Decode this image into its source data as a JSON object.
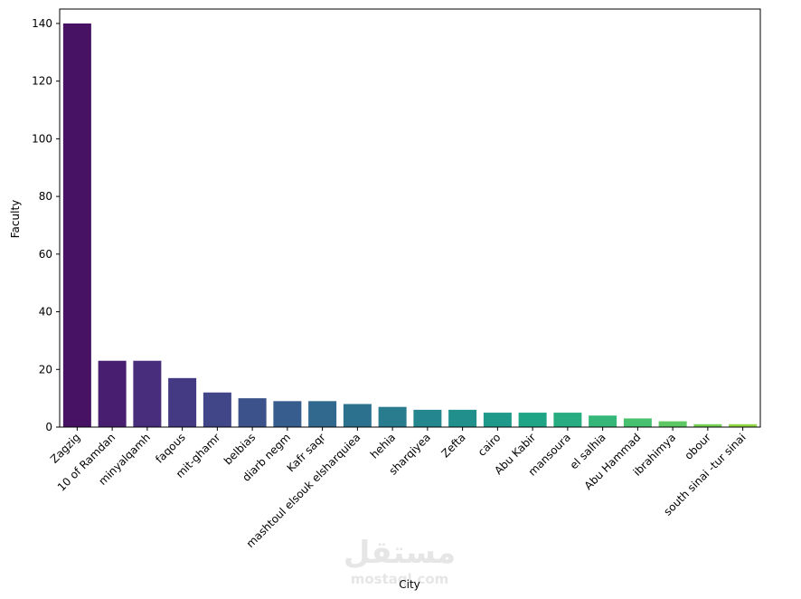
{
  "chart_data": {
    "type": "bar",
    "xlabel": "City",
    "ylabel": "Faculty",
    "ylim": [
      0,
      145
    ],
    "yticks": [
      0,
      20,
      40,
      60,
      80,
      100,
      120,
      140
    ],
    "grid": false,
    "palette": "viridis",
    "categories": [
      "Zagzig",
      "10 of Ramdan",
      "minyalqamh",
      "faqous",
      "mit-ghamr",
      "belbias",
      "diarb negm",
      "Kafr saqr",
      "mashtoul elsouk elsharquiea",
      "hehia",
      "sharqiyea",
      "Zefta",
      "cairo",
      "Abu Kabir",
      "mansoura",
      "el salhia",
      "Abu Hammad",
      "ibrahimya",
      "obour",
      "south sinai -tur sinai"
    ],
    "values": [
      140,
      23,
      23,
      17,
      12,
      10,
      9,
      9,
      8,
      7,
      6,
      6,
      5,
      5,
      5,
      4,
      3,
      2,
      1,
      1
    ],
    "colors": [
      "#471164",
      "#481f70",
      "#472d7b",
      "#443983",
      "#404688",
      "#3b528b",
      "#365d8d",
      "#31688e",
      "#2c728e",
      "#287c8e",
      "#24868e",
      "#21908d",
      "#1f9a8a",
      "#20a486",
      "#27ad81",
      "#35b779",
      "#47c16e",
      "#5dc863",
      "#75d054",
      "#8fd744"
    ]
  },
  "watermark": {
    "arabic": "مستقل",
    "latin": "mostaql.com"
  }
}
